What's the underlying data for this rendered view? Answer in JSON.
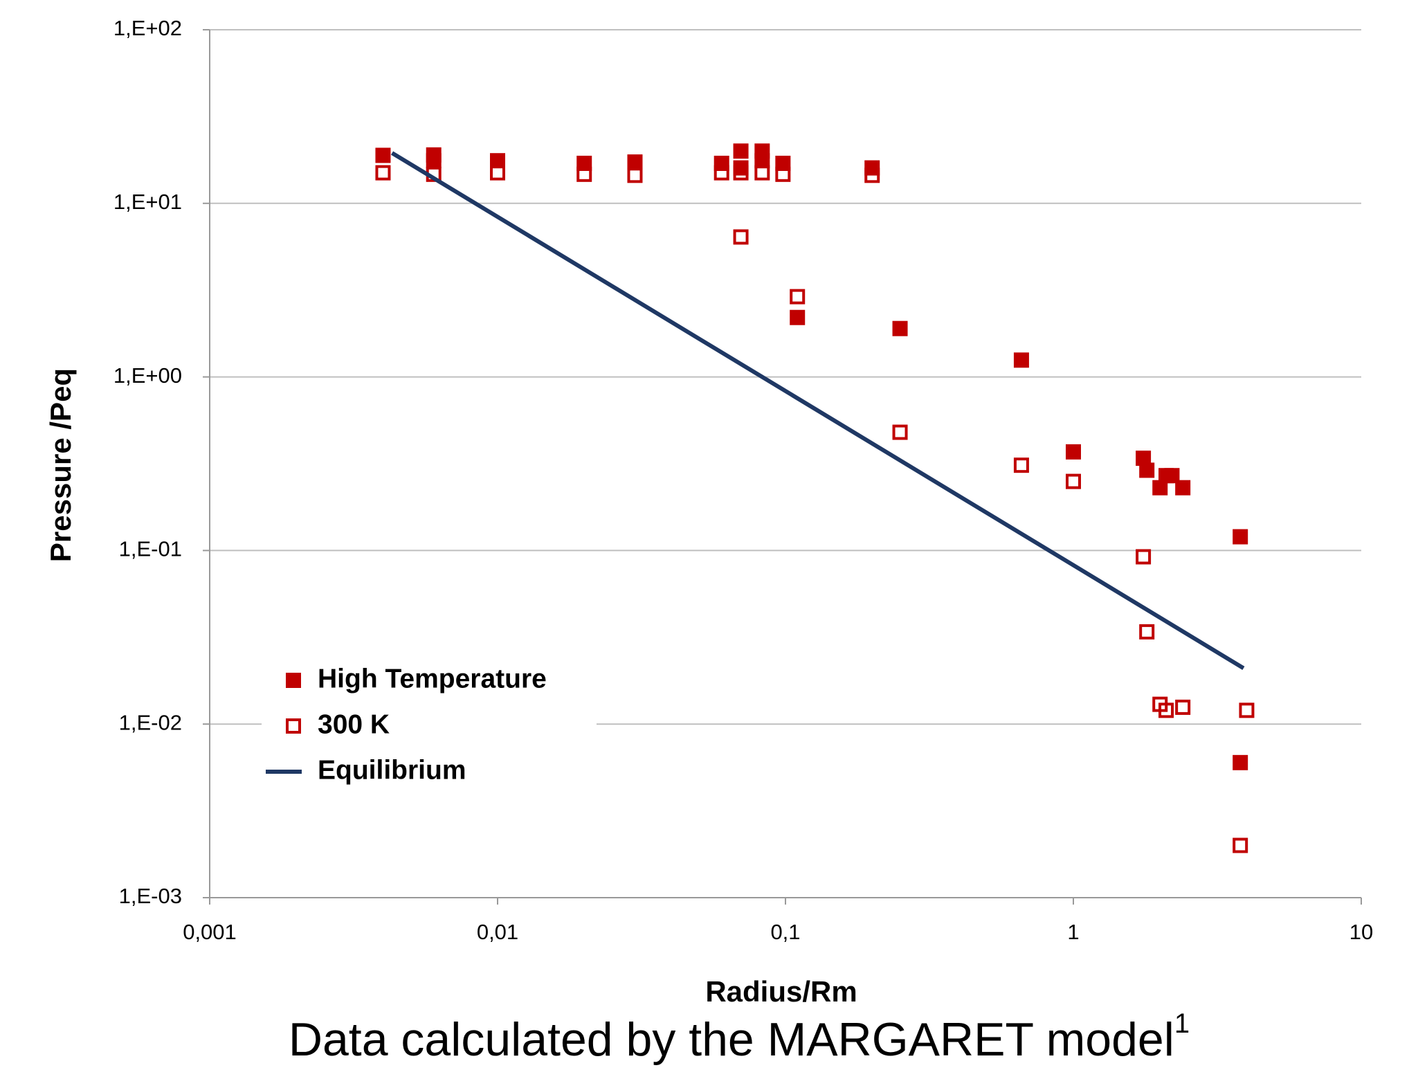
{
  "chart_data": {
    "type": "scatter",
    "x_label": "Radius/Rm",
    "y_label": "Pressure /Peq",
    "caption": "Data calculated by the MARGARET model",
    "caption_footnote": "1",
    "xscale": "log",
    "yscale": "log",
    "xlim": [
      0.001,
      10
    ],
    "ylim": [
      0.001,
      100
    ],
    "xticks": [
      {
        "value": 0.001,
        "label": "0,001"
      },
      {
        "value": 0.01,
        "label": "0,01"
      },
      {
        "value": 0.1,
        "label": "0,1"
      },
      1,
      10
    ],
    "yticks": [
      {
        "value": 0.001,
        "label": "1,E-03"
      },
      {
        "value": 0.01,
        "label": "1,E-02"
      },
      {
        "value": 0.1,
        "label": "1,E-01"
      },
      {
        "value": 1,
        "label": "1,E+00"
      },
      {
        "value": 10,
        "label": "1,E+01"
      },
      {
        "value": 100,
        "label": "1,E+02"
      }
    ],
    "grid": true,
    "legend": "lower left",
    "series": [
      {
        "name": "High Temperature",
        "color": "#c00000",
        "marker": "filled-square",
        "x": [
          0.004,
          0.006,
          0.006,
          0.01,
          0.02,
          0.03,
          0.06,
          0.07,
          0.07,
          0.083,
          0.083,
          0.098,
          0.2,
          0.11,
          0.25,
          0.66,
          1.0,
          1.75,
          1.8,
          2.1,
          2.2,
          2.0,
          2.4,
          3.8,
          3.8
        ],
        "values": [
          18.9,
          19,
          17.6,
          17.6,
          17,
          17.3,
          17,
          20,
          16,
          20,
          17.6,
          17,
          16,
          2.2,
          1.9,
          1.25,
          0.37,
          0.34,
          0.29,
          0.27,
          0.27,
          0.23,
          0.23,
          0.12,
          0.006
        ]
      },
      {
        "name": "300 K",
        "color": "#c00000",
        "marker": "open-square",
        "x": [
          0.004,
          0.006,
          0.01,
          0.02,
          0.03,
          0.06,
          0.07,
          0.083,
          0.098,
          0.2,
          0.07,
          0.11,
          0.25,
          0.66,
          1.0,
          1.75,
          1.8,
          2.0,
          2.1,
          2.4,
          4.0,
          3.8
        ],
        "values": [
          15,
          14.7,
          15,
          14.7,
          14.5,
          15,
          15,
          15,
          14.7,
          14.5,
          6.4,
          2.9,
          0.48,
          0.31,
          0.25,
          0.092,
          0.034,
          0.013,
          0.012,
          0.0125,
          0.012,
          0.002
        ]
      },
      {
        "name": "Equilibrium",
        "color": "#1f3864",
        "marker": "line",
        "x": [
          0.0043,
          3.9
        ],
        "values": [
          19.5,
          0.021
        ]
      }
    ]
  }
}
